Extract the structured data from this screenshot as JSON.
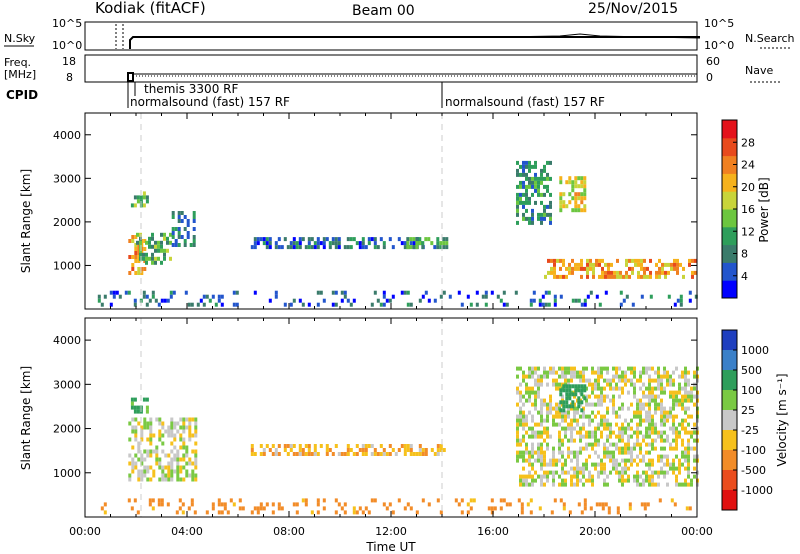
{
  "header": {
    "station": "Kodiak (fitACF)",
    "beam": "Beam 00",
    "date": "25/Nov/2015"
  },
  "noise_panel": {
    "left_label": "N.Sky",
    "right_label": "N.Search",
    "left_ticks": [
      "10^5",
      "10^0"
    ],
    "right_ticks": [
      "10^5",
      "10^0"
    ]
  },
  "freq_panel": {
    "left_label_line1": "Freq.",
    "left_label_line2": "[MHz]",
    "right_label": "Nave",
    "left_ticks": [
      "18",
      "8"
    ],
    "right_ticks": [
      "60",
      "0"
    ]
  },
  "cpid": {
    "label": "CPID",
    "programs": [
      {
        "name": "themis 3300 RF",
        "start_hour": 1.9
      },
      {
        "name": "normalsound (fast) 157 RF",
        "start_hour": 1.4
      },
      {
        "name": "normalsound (fast) 157 RF",
        "start_hour": 13.9
      }
    ]
  },
  "chart_data": [
    {
      "type": "heatmap",
      "name": "power",
      "xlabel": "",
      "ylabel": "Slant Range [km]",
      "xlim": [
        0,
        24
      ],
      "ylim": [
        0,
        4500
      ],
      "yticks": [
        "1000",
        "2000",
        "3000",
        "4000"
      ],
      "colorbar": {
        "label": "Power [dB]",
        "range": [
          0,
          32
        ],
        "ticks": [
          "4",
          "8",
          "12",
          "16",
          "20",
          "24",
          "28"
        ],
        "colors": [
          "#0000ff",
          "#2255cc",
          "#3a7b6b",
          "#2e9e5b",
          "#6cc63f",
          "#c8d43a",
          "#f6b21c",
          "#f08020",
          "#e84a1c",
          "#e4121b"
        ]
      },
      "regions": [
        {
          "t0": 1.7,
          "t1": 2.4,
          "r0": 850,
          "r1": 1700,
          "value": 22
        },
        {
          "t0": 2.0,
          "t1": 3.4,
          "r0": 1100,
          "r1": 1750,
          "value": 12
        },
        {
          "t0": 3.4,
          "t1": 4.3,
          "r0": 1450,
          "r1": 2250,
          "value": 8
        },
        {
          "t0": 1.8,
          "t1": 2.5,
          "r0": 2350,
          "r1": 2700,
          "value": 14
        },
        {
          "t0": 6.5,
          "t1": 13.3,
          "r0": 1450,
          "r1": 1650,
          "value": 6
        },
        {
          "t0": 12.6,
          "t1": 14.2,
          "r0": 1450,
          "r1": 1650,
          "value": 11
        },
        {
          "t0": 16.9,
          "t1": 18.3,
          "r0": 2000,
          "r1": 3400,
          "value": 10
        },
        {
          "t0": 18.0,
          "t1": 24.0,
          "r0": 700,
          "r1": 1150,
          "value": 22
        },
        {
          "t0": 18.6,
          "t1": 19.6,
          "r0": 2300,
          "r1": 3050,
          "value": 18
        },
        {
          "t0": 0.5,
          "t1": 24.0,
          "r0": 120,
          "r1": 420,
          "value": 6
        }
      ]
    },
    {
      "type": "heatmap",
      "name": "velocity",
      "xlabel": "Time UT",
      "ylabel": "Slant Range [km]",
      "xlim": [
        0,
        24
      ],
      "ylim": [
        0,
        4500
      ],
      "xticks": [
        "00:00",
        "04:00",
        "08:00",
        "12:00",
        "16:00",
        "20:00",
        "00:00"
      ],
      "yticks": [
        "1000",
        "2000",
        "3000",
        "4000"
      ],
      "colorbar": {
        "label": "Velocity [m s⁻¹]",
        "ticks": [
          "1000",
          "500",
          "100",
          "25",
          "-25",
          "-100",
          "-500",
          "-1000"
        ],
        "colors": [
          "#1f3fbf",
          "#3a80c8",
          "#2e9e5b",
          "#7ac943",
          "#c8c8c8",
          "#f6c11c",
          "#f28c28",
          "#ea4d1e",
          "#e01010"
        ]
      },
      "regions": [
        {
          "t0": 1.7,
          "t1": 4.4,
          "r0": 850,
          "r1": 2250,
          "value": 0
        },
        {
          "t0": 1.8,
          "t1": 2.5,
          "r0": 2350,
          "r1": 2700,
          "value": 150
        },
        {
          "t0": 6.5,
          "t1": 14.2,
          "r0": 1450,
          "r1": 1650,
          "value": -80
        },
        {
          "t0": 16.9,
          "t1": 24.0,
          "r0": 700,
          "r1": 3400,
          "value": 0
        },
        {
          "t0": 18.6,
          "t1": 19.6,
          "r0": 2400,
          "r1": 3000,
          "value": 200
        },
        {
          "t0": 0.5,
          "t1": 24.0,
          "r0": 120,
          "r1": 420,
          "value": -150
        }
      ]
    }
  ]
}
